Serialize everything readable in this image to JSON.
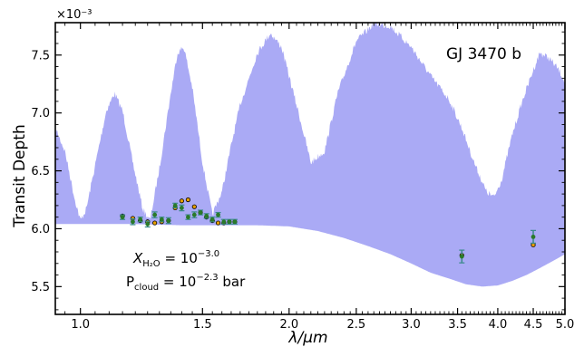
{
  "chart_data": {
    "type": "area",
    "title": "",
    "planet_label": "GJ 3470 b",
    "xlabel": "λ/μm",
    "ylabel": "Transit Depth",
    "y_multiplier": "×10⁻³",
    "x_scale": "log",
    "xlim": [
      0.92,
      5.0
    ],
    "ylim": [
      5.26,
      7.78
    ],
    "x_ticks": [
      1.0,
      1.5,
      2.0,
      2.5,
      3.0,
      3.5,
      4.0,
      4.5,
      5.0
    ],
    "x_tick_labels": [
      "1.0",
      "1.5",
      "2.0",
      "2.5",
      "3.0",
      "3.5",
      "4.0",
      "4.5",
      "5.0"
    ],
    "y_ticks": [
      5.5,
      6.0,
      6.5,
      7.0,
      7.5
    ],
    "y_tick_labels": [
      "5.5",
      "6.0",
      "6.5",
      "7.0",
      "7.5"
    ],
    "annotation_lines": {
      "x_prefix": "X",
      "x_sub": "H₂O",
      "x_eq": " = 10",
      "x_exp": "−3.0",
      "p_prefix": "P",
      "p_sub": "cloud",
      "p_eq": " = 10",
      "p_exp": "−2.3",
      "p_unit": " bar"
    },
    "model_envelope": {
      "color": "#aaaaf5",
      "upper": [
        [
          0.92,
          6.9
        ],
        [
          0.95,
          6.7
        ],
        [
          0.98,
          6.3
        ],
        [
          1.0,
          6.1
        ],
        [
          1.02,
          6.2
        ],
        [
          1.06,
          6.7
        ],
        [
          1.09,
          7.05
        ],
        [
          1.12,
          7.2
        ],
        [
          1.15,
          7.05
        ],
        [
          1.19,
          6.6
        ],
        [
          1.23,
          6.2
        ],
        [
          1.26,
          6.1
        ],
        [
          1.3,
          6.55
        ],
        [
          1.35,
          7.2
        ],
        [
          1.38,
          7.55
        ],
        [
          1.41,
          7.6
        ],
        [
          1.45,
          7.25
        ],
        [
          1.5,
          6.6
        ],
        [
          1.55,
          6.15
        ],
        [
          1.6,
          6.35
        ],
        [
          1.65,
          6.75
        ],
        [
          1.7,
          7.1
        ],
        [
          1.8,
          7.55
        ],
        [
          1.88,
          7.72
        ],
        [
          1.95,
          7.6
        ],
        [
          2.05,
          7.1
        ],
        [
          2.15,
          6.6
        ],
        [
          2.25,
          6.7
        ],
        [
          2.35,
          7.2
        ],
        [
          2.5,
          7.65
        ],
        [
          2.65,
          7.8
        ],
        [
          2.8,
          7.78
        ],
        [
          3.0,
          7.6
        ],
        [
          3.2,
          7.35
        ],
        [
          3.4,
          7.15
        ],
        [
          3.55,
          6.9
        ],
        [
          3.7,
          6.6
        ],
        [
          3.85,
          6.35
        ],
        [
          3.95,
          6.3
        ],
        [
          4.05,
          6.45
        ],
        [
          4.2,
          6.85
        ],
        [
          4.35,
          7.15
        ],
        [
          4.5,
          7.4
        ],
        [
          4.6,
          7.55
        ],
        [
          4.75,
          7.5
        ],
        [
          4.9,
          7.4
        ],
        [
          5.0,
          7.3
        ]
      ],
      "lower": [
        [
          0.92,
          6.04
        ],
        [
          1.2,
          6.04
        ],
        [
          1.4,
          6.03
        ],
        [
          1.6,
          6.03
        ],
        [
          1.8,
          6.03
        ],
        [
          2.0,
          6.02
        ],
        [
          2.2,
          5.98
        ],
        [
          2.4,
          5.92
        ],
        [
          2.6,
          5.85
        ],
        [
          2.8,
          5.78
        ],
        [
          3.0,
          5.7
        ],
        [
          3.2,
          5.62
        ],
        [
          3.4,
          5.57
        ],
        [
          3.6,
          5.52
        ],
        [
          3.8,
          5.5
        ],
        [
          4.0,
          5.51
        ],
        [
          4.2,
          5.55
        ],
        [
          4.4,
          5.6
        ],
        [
          4.6,
          5.66
        ],
        [
          4.8,
          5.72
        ],
        [
          5.0,
          5.78
        ]
      ]
    },
    "series": [
      {
        "type": "errorbar",
        "color": "#2a7a2a",
        "ecolor": "#3a8a8a",
        "points": [
          [
            1.15,
            6.1,
            0.02
          ],
          [
            1.19,
            6.06,
            0.025
          ],
          [
            1.22,
            6.08,
            0.02
          ],
          [
            1.25,
            6.04,
            0.025
          ],
          [
            1.28,
            6.12,
            0.025
          ],
          [
            1.31,
            6.08,
            0.02
          ],
          [
            1.34,
            6.07,
            0.025
          ],
          [
            1.37,
            6.2,
            0.02
          ],
          [
            1.4,
            6.18,
            0.025
          ],
          [
            1.43,
            6.1,
            0.02
          ],
          [
            1.46,
            6.12,
            0.025
          ],
          [
            1.49,
            6.14,
            0.02
          ],
          [
            1.52,
            6.11,
            0.02
          ],
          [
            1.55,
            6.08,
            0.02
          ],
          [
            1.58,
            6.12,
            0.02
          ],
          [
            1.61,
            6.06,
            0.02
          ],
          [
            1.64,
            6.06,
            0.02
          ],
          [
            1.67,
            6.06,
            0.02
          ],
          [
            3.55,
            5.76,
            0.055
          ],
          [
            4.5,
            5.93,
            0.055
          ]
        ]
      },
      {
        "type": "model-binned",
        "color": "#e69f00",
        "points": [
          [
            1.15,
            6.11
          ],
          [
            1.19,
            6.09
          ],
          [
            1.22,
            6.07
          ],
          [
            1.25,
            6.06
          ],
          [
            1.28,
            6.05
          ],
          [
            1.31,
            6.06
          ],
          [
            1.34,
            6.07
          ],
          [
            1.37,
            6.18
          ],
          [
            1.4,
            6.24
          ],
          [
            1.43,
            6.25
          ],
          [
            1.46,
            6.19
          ],
          [
            1.49,
            6.14
          ],
          [
            1.52,
            6.1
          ],
          [
            1.55,
            6.07
          ],
          [
            1.58,
            6.05
          ],
          [
            1.61,
            6.05
          ],
          [
            1.64,
            6.06
          ],
          [
            1.67,
            6.06
          ],
          [
            3.55,
            5.77
          ],
          [
            4.5,
            5.86
          ]
        ]
      }
    ]
  }
}
